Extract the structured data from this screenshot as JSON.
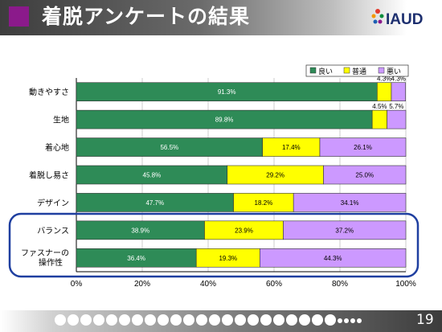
{
  "slide": {
    "title": "着脱アンケートの結果",
    "page_number": "19",
    "logo_text": "IAUD"
  },
  "colors": {
    "good": "#2e8b57",
    "normal": "#ffff00",
    "bad": "#cc99ff",
    "highlight_frame": "#1f3fa0"
  },
  "chart_data": {
    "type": "bar",
    "orientation": "horizontal",
    "stacked": true,
    "categories": [
      "動きやすさ",
      "生地",
      "着心地",
      "着脱し易さ",
      "デザイン",
      "バランス",
      "ファスナーの操作性"
    ],
    "series": [
      {
        "name": "良い",
        "values": [
          91.3,
          89.8,
          56.5,
          45.8,
          47.7,
          38.9,
          36.4
        ],
        "labels": [
          "91.3%",
          "89.8%",
          "56.5%",
          "45.8%",
          "47.7%",
          "38.9%",
          "36.4%"
        ]
      },
      {
        "name": "普通",
        "values": [
          4.3,
          4.5,
          17.4,
          29.2,
          18.2,
          23.9,
          19.3
        ],
        "labels": [
          "4.3%",
          "4.5%",
          "17.4%",
          "29.2%",
          "18.2%",
          "23.9%",
          "19.3%"
        ]
      },
      {
        "name": "悪い",
        "values": [
          4.3,
          5.7,
          26.1,
          25.0,
          34.1,
          37.2,
          44.3
        ],
        "labels": [
          "4.3%",
          "5.7%",
          "26.1%",
          "25.0%",
          "34.1%",
          "37.2%",
          "44.3%"
        ]
      }
    ],
    "xlim": [
      0,
      100
    ],
    "xticks": [
      "0%",
      "20%",
      "40%",
      "60%",
      "80%",
      "100%"
    ],
    "legend": "top-right",
    "highlighted_categories": [
      "バランス",
      "ファスナーの操作性"
    ]
  }
}
